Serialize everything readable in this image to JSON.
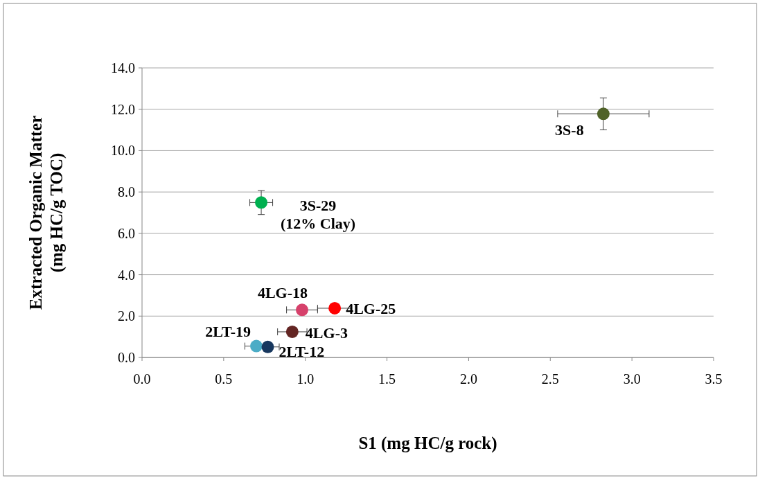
{
  "chart_data": {
    "type": "scatter",
    "xlabel": "S1 (mg HC/g rock)",
    "ylabel": "Extracted Organic Matter\n(mg HC/g TOC)",
    "x": [
      2.825,
      0.73,
      0.98,
      1.18,
      0.92,
      0.7,
      0.77
    ],
    "values": [
      11.78,
      7.49,
      2.3,
      2.38,
      1.24,
      0.55,
      0.51
    ],
    "colors": [
      "#4f6228",
      "#00b050",
      "#d6416b",
      "#ff0000",
      "#632523",
      "#4bacc6",
      "#17375e"
    ],
    "errors": [
      0.77,
      0.58,
      null,
      null,
      null,
      null,
      null
    ],
    "xerrors": [
      0.28,
      0.07,
      0.095,
      0.105,
      0.09,
      0.07,
      0.07
    ],
    "marker": "circle",
    "grid": "y",
    "xlim": [
      0,
      3.5
    ],
    "ylim": [
      0,
      14
    ],
    "xticks": [
      {
        "value": 0,
        "label": "0.0"
      },
      {
        "value": 0.5,
        "label": "0.5"
      },
      {
        "value": 1,
        "label": "1.0"
      },
      {
        "value": 1.5,
        "label": "1.5"
      },
      {
        "value": 2,
        "label": "2.0"
      },
      {
        "value": 2.5,
        "label": "2.5"
      },
      {
        "value": 3,
        "label": "3.0"
      },
      {
        "value": 3.5,
        "label": "3.5"
      }
    ],
    "yticks": [
      {
        "value": 0,
        "label": "0.0"
      },
      {
        "value": 2,
        "label": "2.0"
      },
      {
        "value": 4,
        "label": "4.0"
      },
      {
        "value": 6,
        "label": "6.0"
      },
      {
        "value": 8,
        "label": "8.0"
      },
      {
        "value": 10,
        "label": "10.0"
      },
      {
        "value": 12,
        "label": "12.0"
      },
      {
        "value": 14,
        "label": "14.0"
      }
    ],
    "annotations": [
      {
        "text": "3S-8",
        "x": 2.825,
        "y": 11.78
      },
      {
        "text": "3S-29\n(12% Clay)",
        "x": 0.73,
        "y": 7.49
      },
      {
        "text": "4LG-18",
        "x": 0.98,
        "y": 2.3
      },
      {
        "text": "4LG-25",
        "x": 1.18,
        "y": 2.38
      },
      {
        "text": "4LG-3",
        "x": 0.92,
        "y": 1.24
      },
      {
        "text": "2LT-19",
        "x": 0.7,
        "y": 0.55
      },
      {
        "text": "2LT-12",
        "x": 0.77,
        "y": 0.51
      }
    ]
  }
}
